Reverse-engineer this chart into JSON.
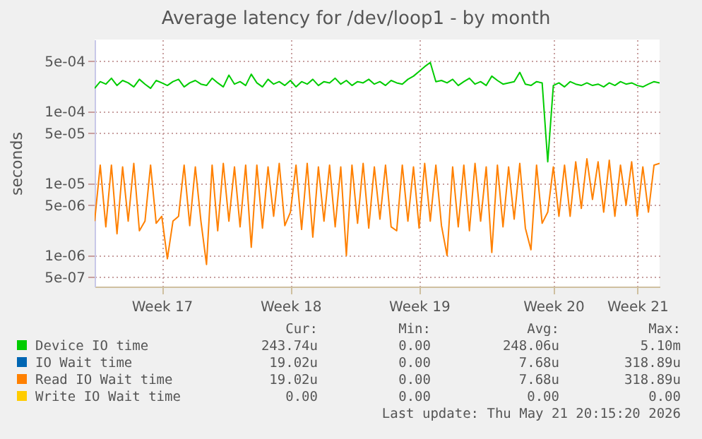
{
  "chart_data": {
    "type": "line",
    "title": "Average latency for /dev/loop1 - by month",
    "ylabel": "seconds",
    "log": true,
    "grid": true,
    "legend": "bottom",
    "categories": [
      null,
      null,
      null,
      null,
      null,
      null,
      null,
      null,
      null,
      null,
      null,
      null,
      "Week 17",
      null,
      null,
      null,
      null,
      null,
      null,
      null,
      null,
      null,
      null,
      null,
      null,
      null,
      null,
      null,
      null,
      null,
      null,
      null,
      null,
      null,
      null,
      "Week 18",
      null,
      null,
      null,
      null,
      null,
      null,
      null,
      null,
      null,
      null,
      null,
      null,
      null,
      null,
      null,
      null,
      null,
      null,
      null,
      null,
      null,
      null,
      "Week 19",
      null,
      null,
      null,
      null,
      null,
      null,
      null,
      null,
      null,
      null,
      null,
      null,
      null,
      null,
      null,
      null,
      null,
      null,
      null,
      null,
      null,
      null,
      null,
      "Week 20",
      null,
      null,
      null,
      null,
      null,
      null,
      null,
      null,
      null,
      null,
      null,
      null,
      null,
      null,
      "Week 21",
      null,
      null,
      null,
      null
    ],
    "ylim": [
      3.7e-07,
      0.001
    ],
    "yticks": [
      {
        "value": 5e-07,
        "label": "5e-07"
      },
      {
        "value": 1e-06,
        "label": "1e-06"
      },
      {
        "value": 5e-06,
        "label": "5e-06"
      },
      {
        "value": 1e-05,
        "label": "1e-05"
      },
      {
        "value": 5e-05,
        "label": "5e-05"
      },
      {
        "value": 0.0001,
        "label": "1e-04"
      },
      {
        "value": 0.0005,
        "label": "5e-04"
      }
    ],
    "series": [
      {
        "name": "Device IO time",
        "color": "#00cc00",
        "values": [
          0.00021,
          0.00026,
          0.00024,
          0.00029,
          0.00023,
          0.00027,
          0.00025,
          0.00022,
          0.00028,
          0.00024,
          0.00021,
          0.00027,
          0.00025,
          0.00023,
          0.00026,
          0.00028,
          0.00022,
          0.00025,
          0.00027,
          0.00024,
          0.00023,
          0.00029,
          0.00025,
          0.00022,
          0.00032,
          0.00024,
          0.00026,
          0.00023,
          0.00033,
          0.00025,
          0.00022,
          0.00028,
          0.00024,
          0.00026,
          0.00023,
          0.00027,
          0.00022,
          0.00026,
          0.00024,
          0.00028,
          0.00023,
          0.00026,
          0.00025,
          0.00029,
          0.00024,
          0.00027,
          0.00023,
          0.00026,
          0.00025,
          0.00028,
          0.00024,
          0.00026,
          0.00023,
          0.00027,
          0.00025,
          0.00024,
          0.00028,
          0.00031,
          0.00036,
          0.00042,
          0.00048,
          0.00026,
          0.00027,
          0.00025,
          0.00028,
          0.00023,
          0.00026,
          0.00029,
          0.00024,
          0.00026,
          0.00023,
          0.00031,
          0.00027,
          0.00024,
          0.00025,
          0.00026,
          0.00035,
          0.00024,
          0.00023,
          0.00026,
          0.00025,
          2e-05,
          0.00023,
          0.00025,
          0.00022,
          0.00026,
          0.00024,
          0.00023,
          0.00025,
          0.00023,
          0.00024,
          0.00022,
          0.00025,
          0.00023,
          0.00026,
          0.00024,
          0.00025,
          0.00023,
          0.00022,
          0.00024,
          0.00026,
          0.00025
        ]
      },
      {
        "name": "IO Wait time",
        "color": "#0066b3",
        "values": [
          null,
          null,
          null,
          null,
          null,
          null,
          null,
          null,
          null,
          null,
          null,
          null,
          null,
          null,
          null,
          null,
          null,
          null,
          null,
          null,
          null,
          null,
          null,
          null,
          null,
          null,
          null,
          null,
          null,
          null,
          null,
          null,
          null,
          null,
          null,
          null,
          null,
          null,
          null,
          null,
          null,
          null,
          null,
          null,
          null,
          null,
          null,
          null,
          null,
          null,
          null,
          null,
          null,
          null,
          null,
          null,
          null,
          null,
          null,
          null,
          null,
          null,
          null,
          null,
          null,
          null,
          null,
          null,
          null,
          null,
          null,
          null,
          null,
          null,
          null,
          null,
          null,
          null,
          null,
          null,
          null,
          null,
          null,
          null,
          null,
          null,
          null,
          null,
          null,
          null,
          null,
          null,
          null,
          null,
          null,
          null,
          null,
          null,
          null,
          null,
          null,
          null
        ]
      },
      {
        "name": "Read IO Wait time",
        "color": "#ff8000",
        "values": [
          3e-06,
          1.8e-05,
          2.5e-06,
          1.8e-05,
          2e-06,
          1.7e-05,
          3e-06,
          1.9e-05,
          2.2e-06,
          3e-06,
          1.8e-05,
          2.8e-06,
          3.5e-06,
          9e-07,
          3e-06,
          3.5e-06,
          1.8e-05,
          2.6e-06,
          1.7e-05,
          3e-06,
          7.5e-07,
          1.8e-05,
          2.2e-06,
          1.9e-05,
          3e-06,
          1.7e-05,
          2.5e-06,
          1.8e-05,
          1.3e-06,
          1.8e-05,
          2.4e-06,
          1.7e-05,
          3.5e-06,
          1.9e-05,
          2.6e-06,
          4e-06,
          1.8e-05,
          2.3e-06,
          1.9e-05,
          1.8e-06,
          1.7e-05,
          3e-06,
          1.8e-05,
          2.5e-06,
          1.7e-05,
          1e-06,
          1.8e-05,
          2.8e-06,
          1.9e-05,
          2.4e-06,
          1.7e-05,
          3.2e-06,
          1.8e-05,
          2.5e-06,
          2.2e-06,
          1.8e-05,
          3e-06,
          1.7e-05,
          2.4e-06,
          1.9e-05,
          3e-06,
          1.8e-05,
          2.6e-06,
          1e-06,
          1.7e-05,
          2.5e-06,
          1.8e-05,
          2.2e-06,
          1.9e-05,
          3e-06,
          1.7e-05,
          1.1e-06,
          1.8e-05,
          2.5e-06,
          1.7e-05,
          3.2e-06,
          1.9e-05,
          2.4e-06,
          1.2e-06,
          1.8e-05,
          2.8e-06,
          4e-06,
          1.7e-05,
          3.5e-06,
          1.8e-05,
          3.5e-06,
          2e-05,
          4.5e-06,
          2.2e-05,
          6e-06,
          2e-05,
          4e-06,
          2.1e-05,
          3.5e-06,
          1.8e-05,
          5e-06,
          2e-05,
          3.5e-06,
          1.7e-05,
          4e-06,
          1.8e-05,
          1.9e-05
        ]
      },
      {
        "name": "Write IO Wait time",
        "color": "#ffcc00",
        "values": [
          null,
          null,
          null,
          null,
          null,
          null,
          null,
          null,
          null,
          null,
          null,
          null,
          null,
          null,
          null,
          null,
          null,
          null,
          null,
          null,
          null,
          null,
          null,
          null,
          null,
          null,
          null,
          null,
          null,
          null,
          null,
          null,
          null,
          null,
          null,
          null,
          null,
          null,
          null,
          null,
          null,
          null,
          null,
          null,
          null,
          null,
          null,
          null,
          null,
          null,
          null,
          null,
          null,
          null,
          null,
          null,
          null,
          null,
          null,
          null,
          null,
          null,
          null,
          null,
          null,
          null,
          null,
          null,
          null,
          null,
          null,
          null,
          null,
          null,
          null,
          null,
          null,
          null,
          null,
          null,
          null,
          null,
          null,
          null,
          null,
          null,
          null,
          null,
          null,
          null,
          null,
          null,
          null,
          null,
          null,
          null,
          null,
          null,
          null,
          null,
          null,
          null
        ]
      }
    ],
    "annotations": [
      "Cur:",
      "Min:",
      "Avg:",
      "Max:",
      "243.74u",
      "0.00",
      "248.06u",
      "5.10m",
      "19.02u",
      "0.00",
      "7.68u",
      "318.89u",
      "19.02u",
      "0.00",
      "7.68u",
      "318.89u",
      "0.00",
      "0.00",
      "0.00",
      "0.00",
      "Last update: Thu May 21 20:15:20 2026"
    ]
  }
}
